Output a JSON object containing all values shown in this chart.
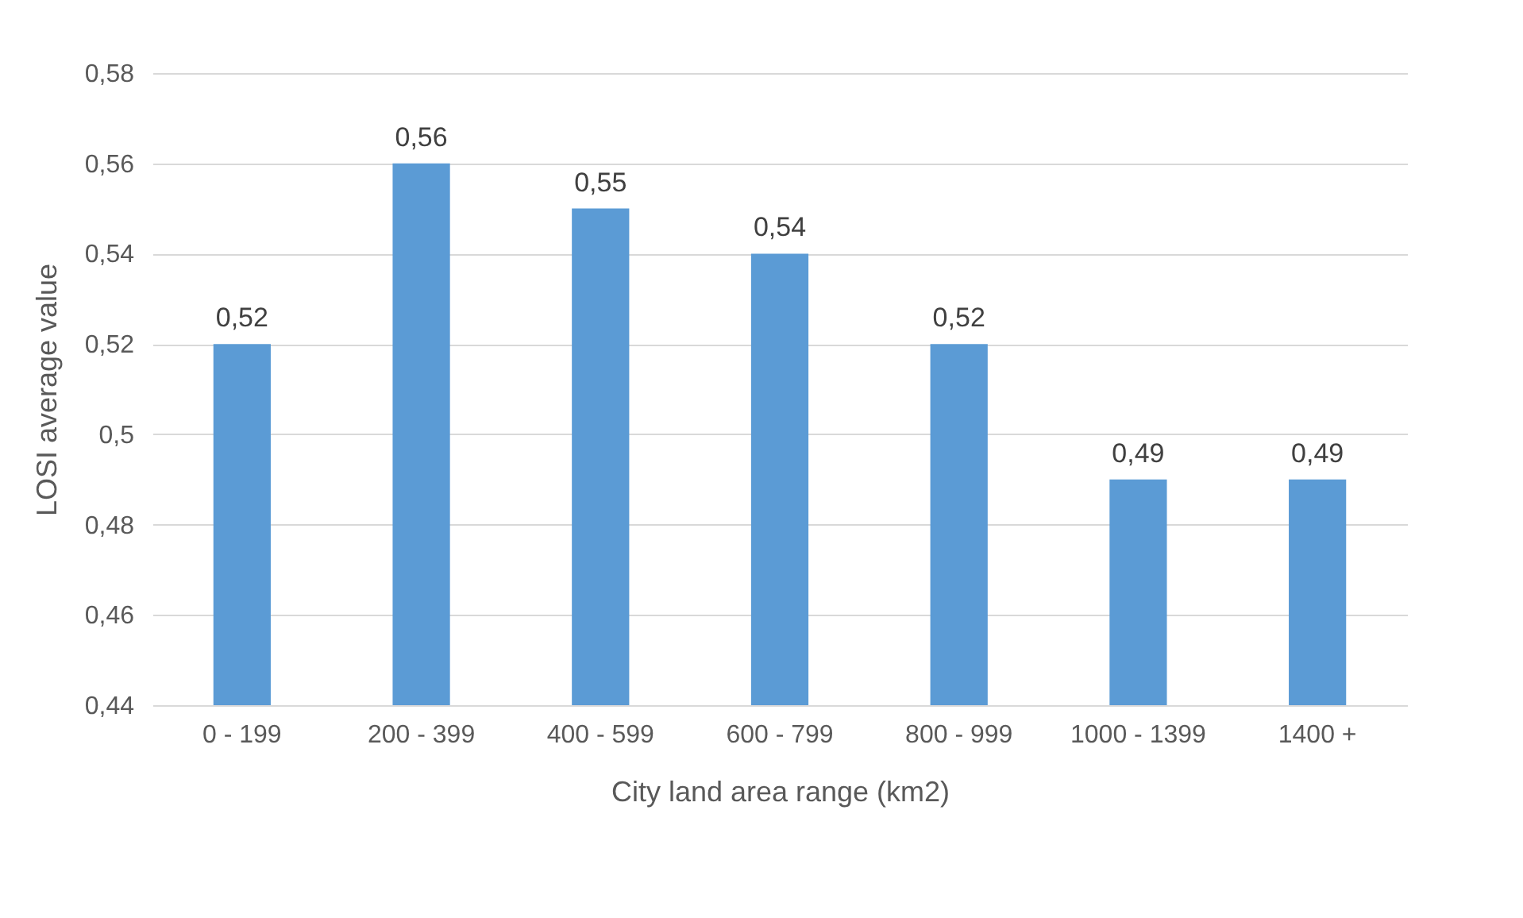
{
  "chart_data": {
    "type": "bar",
    "xlabel": "City land area range (km2)",
    "ylabel": "LOSI average value",
    "categories": [
      "0 - 199",
      "200 - 399",
      "400 - 599",
      "600 - 799",
      "800 - 999",
      "1000 - 1399",
      "1400 +"
    ],
    "values": [
      0.52,
      0.56,
      0.55,
      0.54,
      0.52,
      0.49,
      0.49
    ],
    "value_labels": [
      "0,52",
      "0,56",
      "0,55",
      "0,54",
      "0,52",
      "0,49",
      "0,49"
    ],
    "color": "#5b9bd5",
    "ylim": [
      0.44,
      0.58
    ],
    "yticks": [
      {
        "value": 0.44,
        "label": "0,44"
      },
      {
        "value": 0.46,
        "label": "0,46"
      },
      {
        "value": 0.48,
        "label": "0,48"
      },
      {
        "value": 0.5,
        "label": "0,5"
      },
      {
        "value": 0.52,
        "label": "0,52"
      },
      {
        "value": 0.54,
        "label": "0,54"
      },
      {
        "value": 0.56,
        "label": "0,56"
      },
      {
        "value": 0.58,
        "label": "0,58"
      }
    ],
    "grid": "y"
  }
}
